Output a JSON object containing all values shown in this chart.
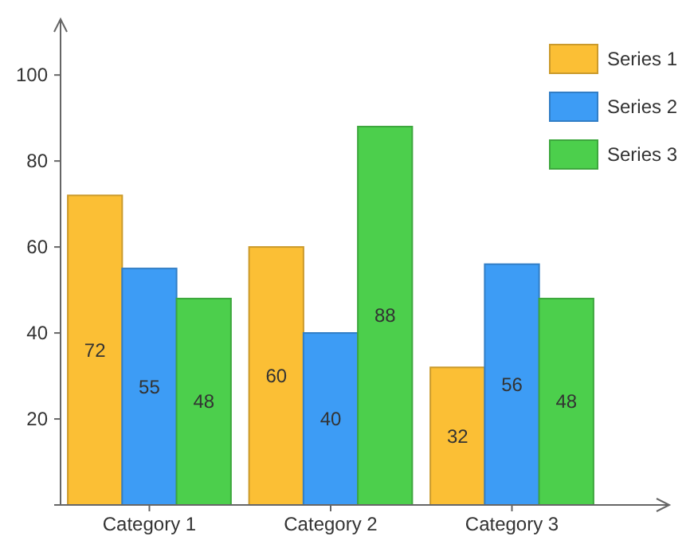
{
  "chart_data": {
    "type": "bar",
    "categories": [
      "Category 1",
      "Category 2",
      "Category 3"
    ],
    "series": [
      {
        "name": "Series 1",
        "color": "#fbbf35",
        "values": [
          72,
          60,
          32
        ]
      },
      {
        "name": "Series 2",
        "color": "#3d9cf5",
        "values": [
          55,
          40,
          56
        ]
      },
      {
        "name": "Series 3",
        "color": "#4ccf4c",
        "values": [
          48,
          88,
          48
        ]
      }
    ],
    "ylim": [
      0,
      113
    ],
    "yticks": [
      {
        "value": 0,
        "label": null
      },
      20,
      40,
      60,
      80,
      100
    ],
    "data_labels": true,
    "legend": "top right",
    "grid": false
  }
}
